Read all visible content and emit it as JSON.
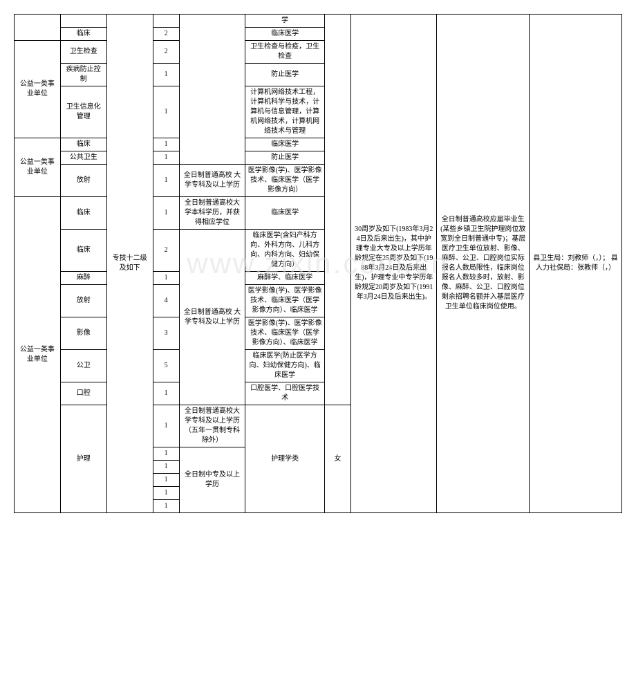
{
  "watermark": "www.zixin.com.cn",
  "rows": [
    {
      "c0": "",
      "c1": "",
      "c2": "",
      "c3": "",
      "c4": "",
      "c5": "学",
      "c6": "",
      "c7": "",
      "c8": "",
      "c9": ""
    },
    {
      "c1": "临床",
      "c3": "2",
      "c5": "临床医学"
    },
    {
      "c0": "公益一类事业单位",
      "c1": "卫生检查",
      "c3": "2",
      "c5": "卫生检查与检疫，卫生检查"
    },
    {
      "c1": "疾病防止控制",
      "c3": "1",
      "c5": "防止医学"
    },
    {
      "c1": "卫生信息化管理",
      "c3": "1",
      "c5": "计算机网络技术工程，计算机科学与技术，计算机与信息管理，计算机网络技术，计算机网络技术与管理"
    },
    {
      "c0": "公益一类事业单位",
      "c1": "临床",
      "c3": "1",
      "c5": "临床医学"
    },
    {
      "c1": "公共卫生",
      "c3": "1",
      "c5": "防止医学"
    },
    {
      "c1": "放射",
      "c3": "1",
      "c4": "全日制普通高校\n大学专科及以上学历",
      "c5": "医学影像(学)、医学影像技术、临床医学（医学影像方向）"
    },
    {
      "c0": "公益一类事业单位",
      "c1": "临床",
      "c2": "专技十二级及如下",
      "c3": "1",
      "c4": "全日制普通高校大学本科学历，并获得相应学位",
      "c5": "临床医学",
      "c7": "30周岁及如下(1983年3月24日及后来出生)，其中护理专业大专及以上学历年龄规定在25周岁及如下(1988年3月24日及后来出生)，护理专业中专学历年龄规定20周岁及如下(1991年3月24日及后来出生)。",
      "c8": "全日制普通高校应届毕业生(某些乡镇卫生院护理岗位放宽到全日制普通中专)；基层医疗卫生单位放射、影像、麻醉、公卫、口腔岗位实际报名人数局限性，临床岗位报名人数较多时，放射、影像、麻醉、公卫、口腔岗位剩余招聘名额并入基层医疗卫生单位临床岗位使用。",
      "c9": "县卫生局：刘教师（，）；\n县人力社保局：张教师（，）"
    },
    {
      "c1": "临床",
      "c3": "2",
      "c4": "全日制普通高校\n大学专科及以上学历",
      "c5": "临床医学(含妇产科方向、外科方向、儿科方向、内科方向、妇幼保健方向）"
    },
    {
      "c1": "麻醉",
      "c3": "1",
      "c5": "麻醉学、临床医学"
    },
    {
      "c1": "放射",
      "c3": "4",
      "c5": "医学影像(学)、医学影像技术、临床医学（医学影像方向）、临床医学"
    },
    {
      "c1": "影像",
      "c3": "3",
      "c5": "医学影像(学)、医学影像技术、临床医学（医学影像方向）、临床医学"
    },
    {
      "c1": "公卫",
      "c3": "5",
      "c5": "临床医学(防止医学方向、妇幼保健方向)、临床医学"
    },
    {
      "c1": "口腔",
      "c3": "1",
      "c5": "口腔医学、口腔医学技术"
    },
    {
      "c1": "护理",
      "c3": "1",
      "c4": "全日制普通高校大学专科及以上学历（五年一贯制专科除外）",
      "c5": "护理学类",
      "c6": "女"
    },
    {
      "c3": "1",
      "c4": "全日制中专及以上学历"
    },
    {
      "c3": "1"
    },
    {
      "c3": "1"
    },
    {
      "c3": "1"
    },
    {
      "c3": "1"
    }
  ]
}
